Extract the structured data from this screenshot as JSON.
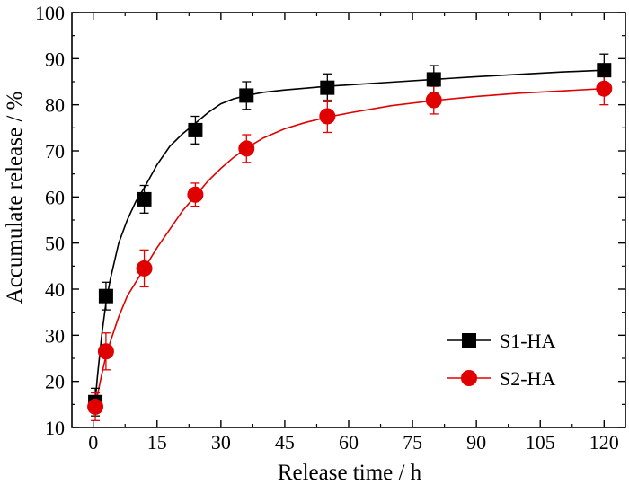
{
  "chart_data": {
    "type": "scatter",
    "title": "",
    "xlabel": "Release time / h",
    "ylabel": "Accumulate release / %",
    "x_ticks": [
      "0",
      "15",
      "30",
      "45",
      "60",
      "75",
      "90",
      "105",
      "120"
    ],
    "x_tick_values": [
      0,
      15,
      30,
      45,
      60,
      75,
      90,
      105,
      120
    ],
    "y_ticks": [
      "10",
      "20",
      "30",
      "40",
      "50",
      "60",
      "70",
      "80",
      "90",
      "100"
    ],
    "y_tick_values": [
      10,
      20,
      30,
      40,
      50,
      60,
      70,
      80,
      90,
      100
    ],
    "xlim": [
      -5,
      125
    ],
    "ylim": [
      10,
      100
    ],
    "grid": false,
    "legend_position": "lower-right",
    "series": [
      {
        "name": "S1-HA",
        "marker": "square",
        "color": "#000000",
        "x": [
          0.5,
          3,
          12,
          24,
          36,
          55,
          80,
          120
        ],
        "y": [
          15.5,
          38.5,
          59.5,
          74.5,
          82,
          83.7,
          85.5,
          87.5
        ],
        "err": [
          3,
          3,
          3,
          3,
          3,
          3,
          3,
          3.5
        ],
        "fit_x": [
          0.5,
          1,
          2,
          3,
          4,
          6,
          8,
          10,
          12,
          15,
          18,
          21,
          24,
          27,
          30,
          33,
          36,
          40,
          45,
          50,
          55,
          60,
          70,
          80,
          90,
          100,
          110,
          120
        ],
        "fit_y": [
          16,
          21,
          30,
          37,
          42,
          50,
          55,
          59,
          62,
          67,
          71,
          73.7,
          76,
          78.3,
          80.2,
          81.3,
          82,
          82.7,
          83.2,
          83.6,
          84,
          84.3,
          84.9,
          85.5,
          86.1,
          86.6,
          87.1,
          87.5
        ]
      },
      {
        "name": "S2-HA",
        "marker": "circle",
        "color": "#e00000",
        "x": [
          0.5,
          3,
          12,
          24,
          36,
          55,
          80,
          120
        ],
        "y": [
          14.5,
          26.5,
          44.5,
          60.5,
          70.5,
          77.5,
          81,
          83.5
        ],
        "err": [
          3,
          4,
          4,
          2.5,
          3,
          3.5,
          3,
          3.5
        ],
        "fit_x": [
          0.5,
          1,
          2,
          3,
          4,
          6,
          8,
          10,
          12,
          15,
          18,
          21,
          24,
          27,
          30,
          33,
          36,
          40,
          45,
          50,
          55,
          60,
          70,
          80,
          90,
          100,
          110,
          120
        ],
        "fit_y": [
          14.5,
          17,
          21.5,
          25.5,
          28.5,
          34,
          38.5,
          41.5,
          44.5,
          49,
          53,
          57,
          60.2,
          63.5,
          66.2,
          68.6,
          70.6,
          72.8,
          74.8,
          76.2,
          77.3,
          78.2,
          79.8,
          80.9,
          81.8,
          82.5,
          83,
          83.5
        ]
      }
    ]
  }
}
